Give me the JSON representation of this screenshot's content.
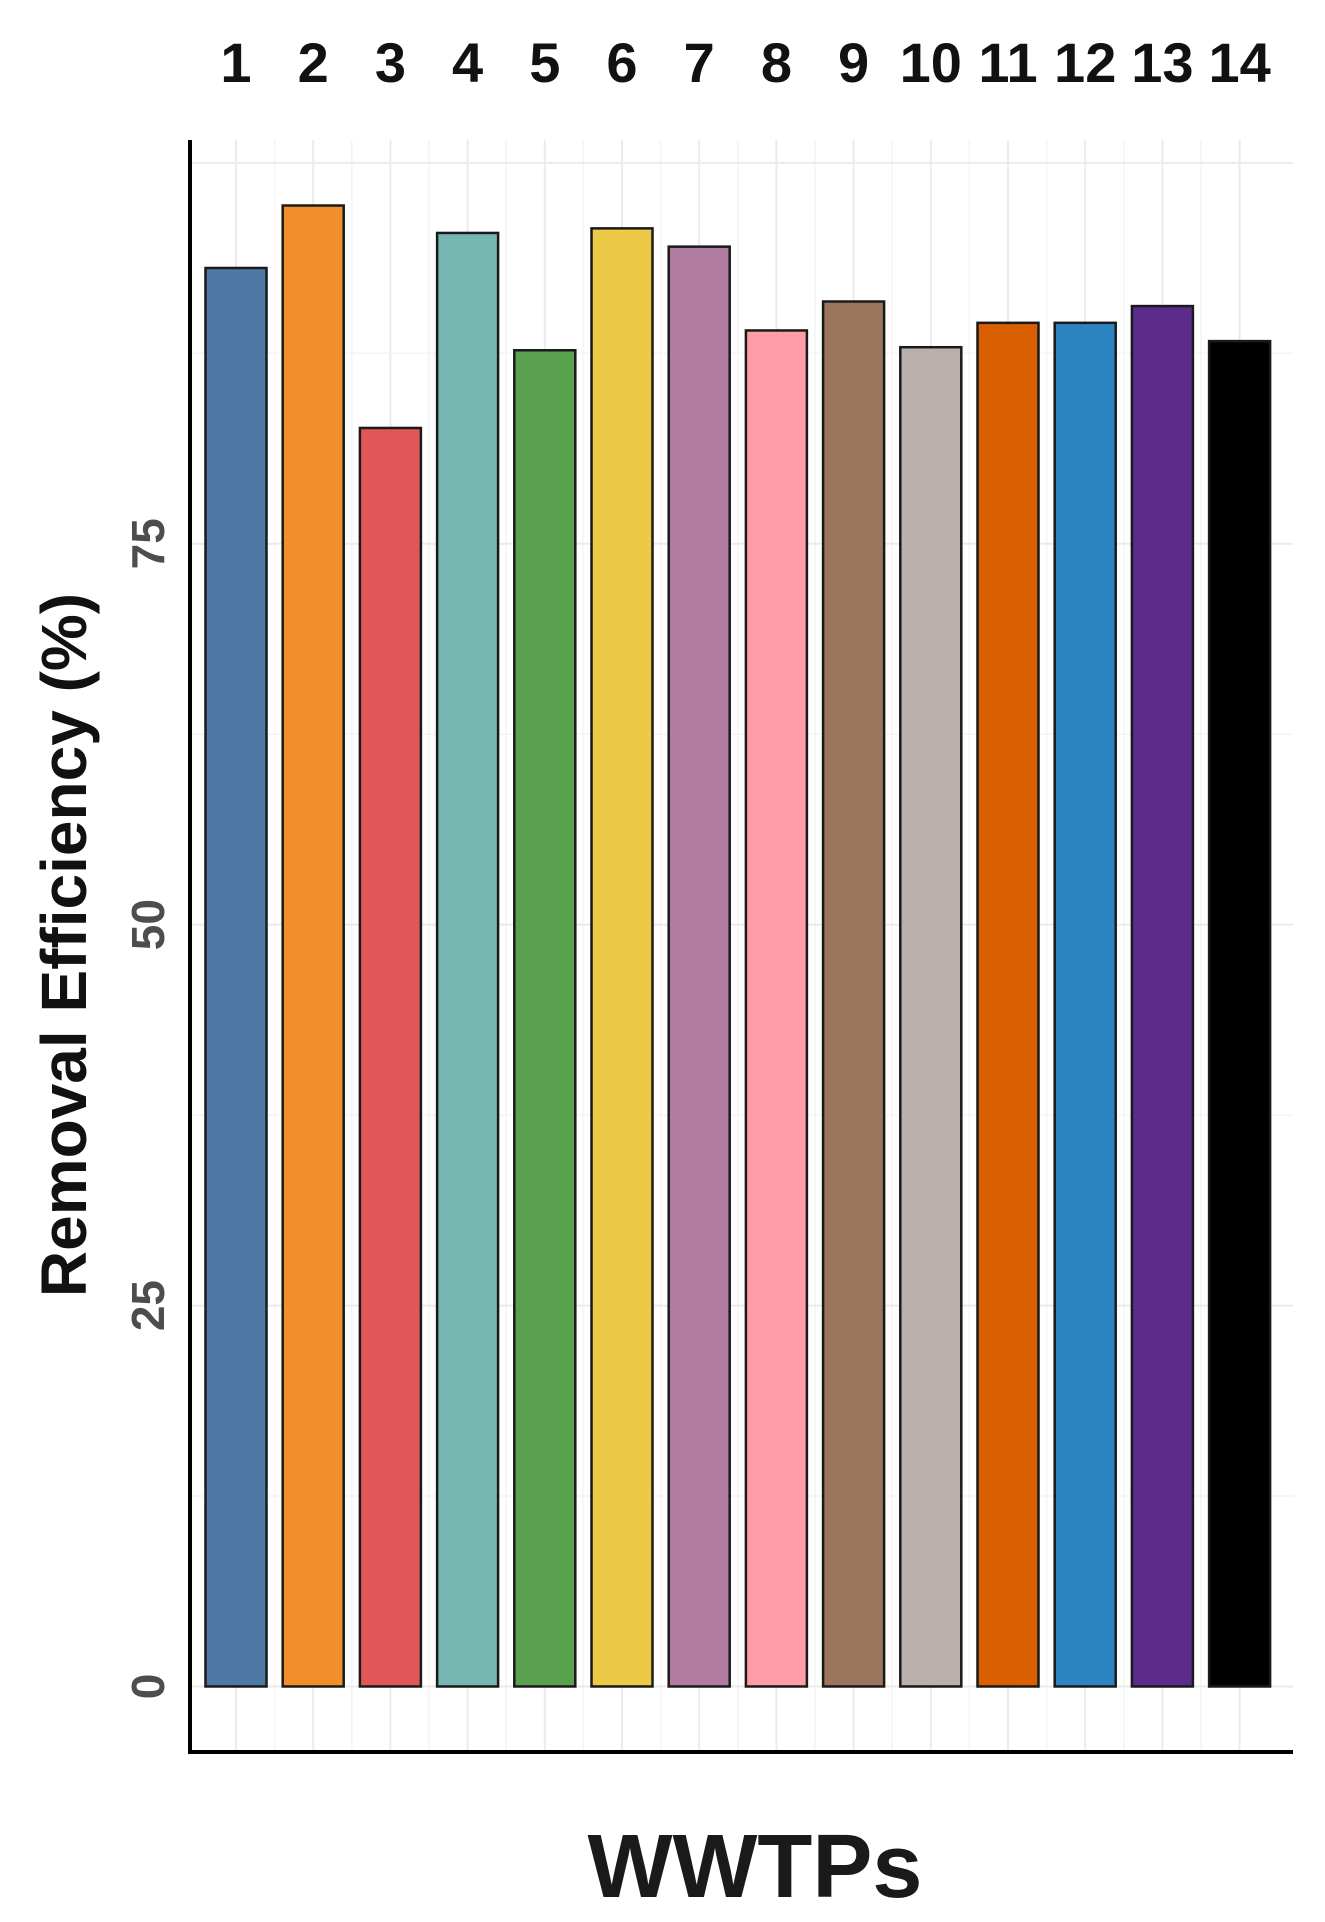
{
  "chart_data": {
    "type": "bar",
    "categories": [
      "1",
      "2",
      "3",
      "4",
      "5",
      "6",
      "7",
      "8",
      "9",
      "10",
      "11",
      "12",
      "13",
      "14"
    ],
    "values": [
      93.1,
      97.2,
      82.6,
      95.4,
      87.7,
      95.7,
      94.5,
      89.0,
      90.9,
      87.9,
      89.5,
      89.5,
      90.6,
      88.3
    ],
    "colors": [
      "#4E79A7",
      "#F28E2B",
      "#E15759",
      "#76B7B2",
      "#59A14F",
      "#EDC948",
      "#B07AA1",
      "#FF9DA7",
      "#9C755F",
      "#BAB0AC",
      "#D95F02",
      "#2C85C0",
      "#5B2C8C",
      "#000000"
    ],
    "xlabel": "WWTPs",
    "ylabel": "Removal Efficiency (%)",
    "ylim": [
      -4.3,
      101.5
    ],
    "yticks": [
      "0",
      "25",
      "50",
      "75"
    ],
    "category_axis_position": "top",
    "grid": true,
    "legend": "none"
  }
}
